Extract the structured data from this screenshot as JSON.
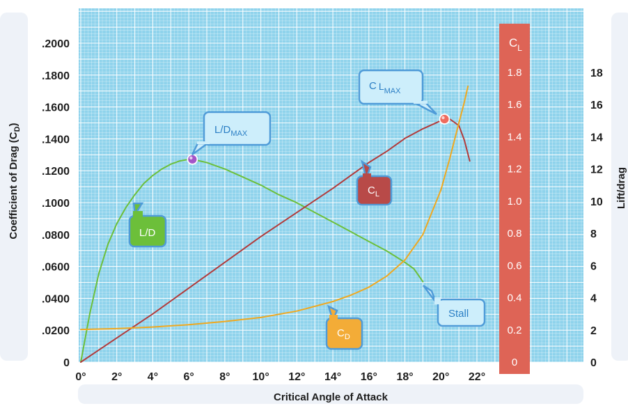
{
  "chart_data": {
    "type": "line",
    "xlabel": "Critical Angle of Attack",
    "ylabel_left": "Coefficient of Drag (C",
    "ylabel_left_sub": "D",
    "ylabel_left_end": ")",
    "ylabel_right": "Lift/drag",
    "x_ticks": [
      "0°",
      "2°",
      "4°",
      "6°",
      "8°",
      "10°",
      "12°",
      "14°",
      "16°",
      "18°",
      "20°",
      "22°"
    ],
    "xlim": [
      0,
      23
    ],
    "cd_ticks": [
      "0",
      ".0200",
      ".0400",
      ".0600",
      ".0800",
      ".1000",
      ".1200",
      ".1400",
      ".1600",
      ".1800",
      ".2000"
    ],
    "cd_lim": [
      0,
      0.2
    ],
    "cl_bar_title": "C",
    "cl_bar_title_sub": "L",
    "cl_ticks": [
      "0",
      "0.2",
      "0.4",
      "0.6",
      "0.8",
      "1.0",
      "1.2",
      "1.4",
      "1.6",
      "1.8"
    ],
    "cl_lim": [
      0,
      2.0
    ],
    "ld_ticks": [
      "0",
      "2",
      "4",
      "6",
      "8",
      "10",
      "12",
      "14",
      "16",
      "18"
    ],
    "ld_lim": [
      0,
      20
    ],
    "series": [
      {
        "name": "L/D",
        "color": "#6cbf3a",
        "axis": "ld",
        "x": [
          0,
          0.5,
          1,
          1.5,
          2,
          2.5,
          3,
          3.5,
          4,
          4.5,
          5,
          5.5,
          6,
          6.2,
          7,
          8,
          9,
          10,
          11,
          12,
          13,
          14,
          15,
          16,
          17,
          18,
          18.5,
          19
        ],
        "y": [
          0,
          3.0,
          5.5,
          7.3,
          8.6,
          9.6,
          10.4,
          11.1,
          11.6,
          12.0,
          12.3,
          12.5,
          12.6,
          12.6,
          12.4,
          12.0,
          11.5,
          11.0,
          10.4,
          9.9,
          9.3,
          8.7,
          8.1,
          7.5,
          6.9,
          6.2,
          5.8,
          5.0
        ]
      },
      {
        "name": "C_L",
        "color": "#b23a3a",
        "axis": "cl",
        "x": [
          0,
          2,
          4,
          6,
          8,
          10,
          12,
          14,
          16,
          17,
          18,
          19,
          20,
          20.2,
          20.5,
          21,
          21.3,
          21.6
        ],
        "y": [
          0,
          0.15,
          0.3,
          0.46,
          0.62,
          0.78,
          0.93,
          1.08,
          1.24,
          1.31,
          1.39,
          1.45,
          1.5,
          1.51,
          1.51,
          1.47,
          1.38,
          1.25
        ]
      },
      {
        "name": "C_D",
        "color": "#f0a81e",
        "axis": "cd",
        "x": [
          0,
          2,
          4,
          6,
          8,
          10,
          12,
          14,
          15,
          16,
          17,
          18,
          19,
          20,
          20.5,
          21,
          21.3,
          21.5
        ],
        "y": [
          0.0205,
          0.021,
          0.022,
          0.0235,
          0.0255,
          0.028,
          0.032,
          0.038,
          0.042,
          0.047,
          0.054,
          0.064,
          0.08,
          0.108,
          0.128,
          0.15,
          0.163,
          0.173
        ]
      }
    ],
    "markers": [
      {
        "name": "ld-max-marker",
        "axis": "ld",
        "x": 6.2,
        "y": 12.6,
        "color": "#a455c8"
      },
      {
        "name": "cl-max-marker",
        "axis": "cl",
        "x": 20.2,
        "y": 1.51,
        "color": "#ef6b5e"
      }
    ],
    "annotations": {
      "ld_max": {
        "main": "L/D",
        "sub": "MAX"
      },
      "cl_max": {
        "main": "C",
        "sub1": "L",
        "sub2": "MAX"
      },
      "ld": {
        "text": "L/D"
      },
      "cl": {
        "main": "C",
        "sub": "L"
      },
      "cd": {
        "main": "C",
        "sub": "D"
      },
      "stall": {
        "text": "Stall"
      }
    },
    "colors": {
      "plot_bg": "#8fd3ec",
      "grid": "#ffffff",
      "cl_bar": "#de6456",
      "callout_fill": "#cdeefb",
      "callout_stroke": "#4f9bd8"
    }
  }
}
